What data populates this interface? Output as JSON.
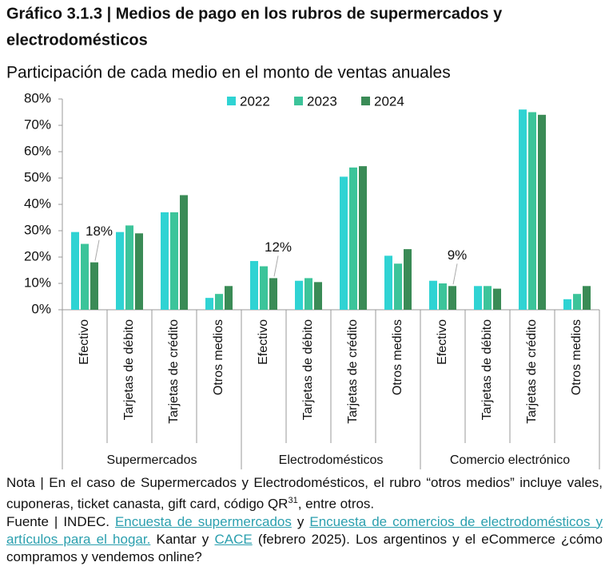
{
  "chart_data": {
    "type": "bar",
    "title": [
      "Gráfico 3.1.3 | Medios de pago en los rubros de supermercados y",
      "electrodomésticos"
    ],
    "subtitle": "Participación de cada medio en el monto de ventas anuales",
    "groups": [
      {
        "name": "Supermercados",
        "categories": [
          "Efectivo",
          "Tarjetas de débito",
          "Tarjetas de crédito",
          "Otros medios"
        ]
      },
      {
        "name": "Electrodomésticos",
        "categories": [
          "Efectivo",
          "Tarjetas de débito",
          "Tarjetas de crédito",
          "Otros medios"
        ]
      },
      {
        "name": "Comercio electrónico",
        "categories": [
          "Efectivo",
          "Tarjetas de débito",
          "Tarjetas de crédito",
          "Otros medios"
        ]
      }
    ],
    "series": [
      {
        "name": "2022",
        "color": "#2fd3d3",
        "values": [
          29.5,
          29.5,
          37,
          4.5,
          18.5,
          11,
          50.5,
          20.5,
          11,
          9,
          76,
          4
        ]
      },
      {
        "name": "2023",
        "color": "#3cc49a",
        "values": [
          25,
          32,
          37,
          6,
          16.5,
          12,
          54,
          17.5,
          10,
          9,
          75,
          6
        ]
      },
      {
        "name": "2024",
        "color": "#3a8b56",
        "values": [
          18,
          29,
          43.5,
          9,
          12,
          10.5,
          54.5,
          23,
          9,
          8,
          74,
          9
        ],
        "value_labels": [
          "18%",
          null,
          null,
          null,
          "12%",
          null,
          null,
          null,
          "9%",
          null,
          null,
          null
        ]
      }
    ],
    "ylim": [
      0,
      80
    ],
    "yticks": [
      {
        "value": 0,
        "label": "0%"
      },
      {
        "value": 10,
        "label": "10%"
      },
      {
        "value": 20,
        "label": "20%"
      },
      {
        "value": 30,
        "label": "30%"
      },
      {
        "value": 40,
        "label": "40%"
      },
      {
        "value": 50,
        "label": "50%"
      },
      {
        "value": 60,
        "label": "60%"
      },
      {
        "value": 70,
        "label": "70%"
      },
      {
        "value": 80,
        "label": "80%"
      }
    ],
    "grid": false,
    "legend": "top"
  },
  "notes": {
    "nota": [
      "Nota | En el caso de Supermercados y Electrodomésticos, el rubro “otros medios” incluye vales, cuponeras, ticket canasta, gift card, código QR",
      "31",
      ", entre otros."
    ],
    "fuente": [
      "Fuente | INDEC. ",
      "Encuesta de supermercados",
      " y ",
      "Encuesta de comercios de electrodomésticos y artículos para el hogar.",
      " Kantar y ",
      "CACE",
      " (febrero 2025). Los argentinos y el eCommerce ¿cómo compramos y vendemos online?"
    ]
  }
}
